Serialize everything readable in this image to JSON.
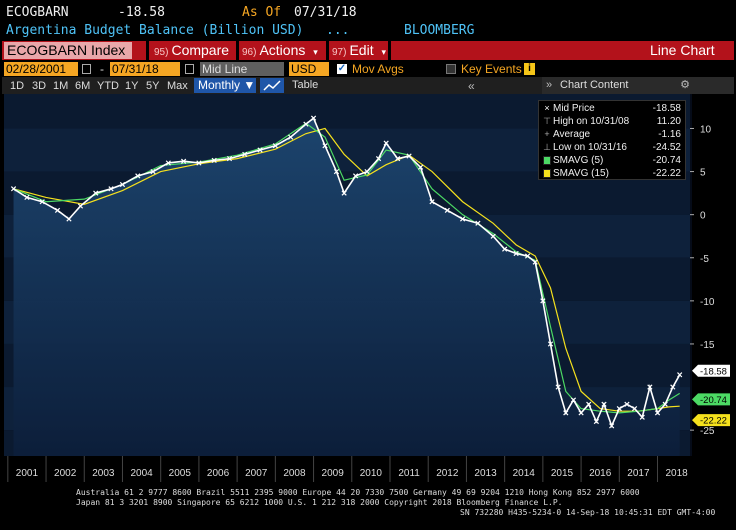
{
  "header": {
    "ticker": "ECOGBARN",
    "price": "-18.58",
    "asof_label": "As Of",
    "asof_date": "07/31/18",
    "description": "Argentina Budget Balance (Billion USD)",
    "ellipsis": "...",
    "source": "BLOOMBERG"
  },
  "command_bar": {
    "index_label": "ECOGBARN Index",
    "compare_num": "95)",
    "compare_label": "Compare",
    "actions_num": "96)",
    "actions_label": "Actions",
    "edit_num": "97)",
    "edit_label": "Edit",
    "chart_type": "Line Chart"
  },
  "date_bar": {
    "start_date": "02/28/2001",
    "end_date": "07/31/18",
    "separator": "-",
    "price_field": "Mid Line",
    "currency": "USD",
    "mov_avgs_label": "Mov Avgs",
    "key_events_label": "Key Events",
    "key_events_icon": "i"
  },
  "period_bar": {
    "periods": [
      "1D",
      "3D",
      "1M",
      "6M",
      "YTD",
      "1Y",
      "5Y",
      "Max"
    ],
    "frequency": "Monthly ▼",
    "table_label": "Table",
    "chevron_left": "«",
    "chevron_right": "»",
    "chart_content_label": "Chart Content",
    "gear_icon": "gear-icon"
  },
  "legend": {
    "items": [
      {
        "label": "Mid Price",
        "value": "-18.58",
        "marker": "×"
      },
      {
        "label": "High on 10/31/08",
        "value": "11.20",
        "marker": "⊤"
      },
      {
        "label": "Average",
        "value": "-1.16",
        "marker": "+"
      },
      {
        "label": "Low on 10/31/16",
        "value": "-24.52",
        "marker": "⊥"
      },
      {
        "label": "SMAVG (5)",
        "value": "-20.74",
        "marker": "box",
        "color": "#4cd964"
      },
      {
        "label": "SMAVG (15)",
        "value": "-22.22",
        "marker": "box",
        "color": "#f5e11d"
      }
    ]
  },
  "chart_data": {
    "type": "line",
    "x_ticks": [
      "2001",
      "2002",
      "2003",
      "2004",
      "2005",
      "2006",
      "2007",
      "2008",
      "2009",
      "2010",
      "2011",
      "2012",
      "2013",
      "2014",
      "2015",
      "2016",
      "2017",
      "2018"
    ],
    "y_ticks": [
      "10",
      "5",
      "0",
      "-5",
      "-10",
      "-15",
      "-25"
    ],
    "ylim": [
      -28,
      14
    ],
    "series": [
      {
        "name": "Mid Price",
        "color": "#ffffff",
        "x": [
          2001.15,
          2001.5,
          2001.9,
          2002.3,
          2002.6,
          2002.9,
          2003.3,
          2003.7,
          2004.0,
          2004.4,
          2004.8,
          2005.2,
          2005.6,
          2006.0,
          2006.4,
          2006.8,
          2007.2,
          2007.6,
          2008.0,
          2008.4,
          2008.8,
          2009.0,
          2009.3,
          2009.6,
          2009.8,
          2010.1,
          2010.4,
          2010.7,
          2010.9,
          2011.2,
          2011.5,
          2011.8,
          2012.1,
          2012.5,
          2012.9,
          2013.3,
          2013.7,
          2014.0,
          2014.3,
          2014.6,
          2014.8,
          2015.0,
          2015.2,
          2015.4,
          2015.6,
          2015.8,
          2016.0,
          2016.2,
          2016.4,
          2016.6,
          2016.8,
          2017.0,
          2017.2,
          2017.4,
          2017.6,
          2017.8,
          2018.0,
          2018.2,
          2018.4,
          2018.58
        ],
        "y": [
          3.0,
          2.0,
          1.5,
          0.5,
          -0.5,
          1.0,
          2.5,
          3.0,
          3.5,
          4.5,
          5.0,
          6.0,
          6.2,
          6.0,
          6.3,
          6.5,
          7.0,
          7.5,
          8.0,
          9.0,
          10.5,
          11.2,
          8.0,
          5.0,
          2.5,
          4.5,
          5.0,
          6.5,
          8.3,
          6.5,
          6.8,
          5.5,
          1.5,
          0.5,
          -0.5,
          -1.0,
          -2.5,
          -4.0,
          -4.5,
          -4.8,
          -5.5,
          -10.0,
          -15.0,
          -20.0,
          -23.0,
          -21.5,
          -23.0,
          -22.0,
          -24.0,
          -22.0,
          -24.5,
          -22.5,
          -22.0,
          -22.5,
          -23.5,
          -20.0,
          -23.0,
          -22.0,
          -20.0,
          -18.58
        ]
      },
      {
        "name": "SMAVG (5)",
        "color": "#4cd964",
        "x": [
          2001.15,
          2002.0,
          2003.0,
          2004.0,
          2005.0,
          2006.0,
          2007.0,
          2008.0,
          2008.8,
          2009.3,
          2009.8,
          2010.4,
          2010.9,
          2011.5,
          2012.1,
          2012.9,
          2013.7,
          2014.3,
          2014.8,
          2015.2,
          2015.6,
          2016.0,
          2016.5,
          2017.0,
          2017.5,
          2018.0,
          2018.3,
          2018.58
        ],
        "y": [
          3.0,
          1.5,
          1.8,
          3.5,
          5.7,
          6.1,
          6.9,
          8.2,
          10.6,
          9.0,
          4.0,
          4.6,
          7.5,
          6.9,
          3.0,
          0.0,
          -2.2,
          -4.3,
          -5.3,
          -13.0,
          -20.5,
          -22.5,
          -22.8,
          -23.0,
          -22.8,
          -22.5,
          -21.5,
          -20.74
        ]
      },
      {
        "name": "SMAVG (15)",
        "color": "#f5e11d",
        "x": [
          2001.15,
          2002.0,
          2003.0,
          2004.0,
          2005.0,
          2006.0,
          2007.0,
          2008.0,
          2008.8,
          2009.3,
          2009.8,
          2010.4,
          2010.9,
          2011.5,
          2012.1,
          2012.9,
          2013.7,
          2014.3,
          2014.8,
          2015.2,
          2015.6,
          2016.0,
          2016.5,
          2017.0,
          2017.5,
          2018.0,
          2018.3,
          2018.58
        ],
        "y": [
          3.0,
          2.0,
          1.2,
          2.8,
          5.0,
          5.9,
          6.5,
          7.6,
          9.4,
          10.0,
          7.0,
          4.5,
          5.8,
          6.9,
          5.0,
          1.5,
          -1.0,
          -3.5,
          -4.8,
          -8.5,
          -15.5,
          -20.5,
          -22.5,
          -22.8,
          -22.8,
          -22.5,
          -22.3,
          -22.22
        ]
      }
    ],
    "last_labels": [
      {
        "value": "-18.58",
        "bg": "#ffffff",
        "fg": "#000000"
      },
      {
        "value": "-20.74",
        "bg": "#4cd964",
        "fg": "#000000"
      },
      {
        "value": "-22.22",
        "bg": "#f5e11d",
        "fg": "#000000"
      }
    ]
  },
  "footer": {
    "line1": "Australia 61 2 9777 8600 Brazil 5511 2395 9000 Europe 44 20 7330 7500 Germany 49 69 9204 1210 Hong Kong 852 2977 6000",
    "line2": "Japan 81 3 3201 8900        Singapore 65 6212 1000       U.S. 1 212 318 2000          Copyright 2018 Bloomberg Finance L.P.",
    "line3": "SN 732280 H435-5234-0 14-Sep-18 10:45:31 EDT  GMT-4:00"
  }
}
